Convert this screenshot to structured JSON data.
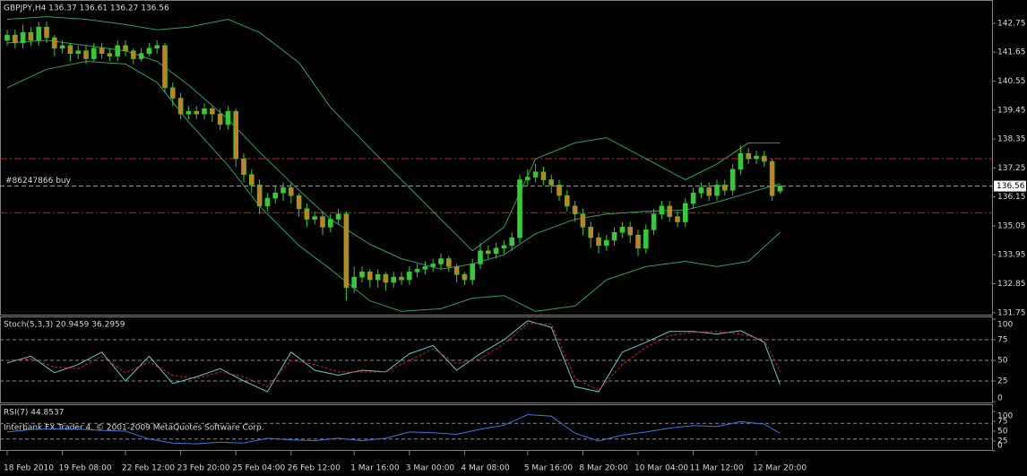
{
  "chart_data": [
    {
      "type": "candlestick",
      "title": "GBPJPY,H4  136.37 136.61 136.27 136.56",
      "open": [
        142.1,
        142.3,
        142.0,
        142.4,
        142.1,
        142.6,
        142.2,
        141.8,
        141.9,
        141.6,
        141.7,
        141.4,
        141.8,
        141.6,
        141.5,
        141.9,
        141.7,
        141.4,
        141.6,
        141.8,
        141.9,
        140.3,
        139.9,
        139.3,
        139.4,
        139.3,
        139.5,
        139.3,
        138.9,
        139.4,
        137.6,
        137.0,
        136.6,
        135.8,
        136.1,
        136.3,
        136.5,
        136.2,
        135.7,
        135.3,
        135.4,
        135.0,
        135.3,
        135.5,
        132.7,
        133.1,
        133.3,
        133.0,
        133.2,
        132.9,
        133.1,
        133.0,
        133.3,
        133.4,
        133.5,
        133.6,
        133.8,
        133.5,
        133.2,
        133.0,
        133.6,
        134.1,
        134.0,
        134.2,
        134.3,
        134.6,
        136.8,
        136.9,
        137.1,
        136.8,
        136.6,
        136.2,
        135.8,
        135.5,
        135.0,
        134.6,
        134.3,
        134.5,
        134.8,
        135.0,
        134.7,
        134.2,
        134.9,
        135.5,
        135.8,
        135.4,
        135.2,
        135.9,
        136.3,
        136.5,
        136.2,
        136.6,
        136.4,
        137.2,
        137.8,
        137.6,
        137.7,
        137.5,
        136.37
      ],
      "high": [
        142.5,
        142.5,
        142.7,
        142.6,
        142.8,
        142.8,
        142.3,
        142.1,
        142.0,
        141.9,
        141.9,
        142.0,
        142.0,
        141.8,
        142.1,
        142.1,
        141.8,
        141.8,
        142.0,
        142.1,
        142.0,
        140.5,
        140.1,
        139.6,
        139.6,
        139.7,
        139.6,
        139.5,
        139.6,
        139.5,
        137.8,
        137.2,
        136.8,
        136.3,
        136.6,
        136.7,
        136.7,
        136.3,
        135.9,
        135.6,
        135.6,
        135.5,
        135.7,
        135.6,
        133.5,
        133.5,
        133.4,
        133.4,
        133.3,
        133.3,
        133.3,
        133.5,
        133.6,
        133.7,
        133.8,
        134.0,
        133.9,
        133.6,
        133.3,
        133.8,
        134.4,
        134.3,
        134.4,
        134.5,
        134.8,
        137.0,
        137.2,
        137.4,
        137.3,
        137.0,
        136.8,
        136.4,
        136.0,
        135.7,
        135.2,
        134.8,
        134.7,
        135.0,
        135.2,
        135.2,
        134.9,
        135.1,
        135.7,
        136.0,
        136.0,
        135.6,
        136.1,
        136.5,
        136.7,
        136.7,
        136.8,
        136.8,
        137.4,
        138.1,
        138.0,
        137.9,
        137.9,
        137.6,
        136.61
      ],
      "low": [
        141.9,
        141.8,
        141.8,
        141.9,
        141.9,
        142.0,
        141.5,
        141.6,
        141.3,
        141.4,
        141.2,
        141.3,
        141.4,
        141.3,
        141.3,
        141.5,
        141.2,
        141.3,
        141.5,
        141.6,
        140.1,
        139.6,
        139.1,
        139.1,
        139.1,
        139.1,
        139.0,
        138.7,
        138.7,
        137.3,
        136.7,
        136.3,
        135.5,
        135.6,
        135.9,
        136.0,
        135.9,
        135.4,
        135.0,
        135.1,
        134.7,
        134.8,
        135.1,
        132.2,
        132.5,
        132.9,
        132.7,
        132.7,
        132.6,
        132.7,
        132.8,
        132.8,
        133.1,
        133.2,
        133.3,
        133.4,
        133.3,
        132.9,
        132.8,
        132.8,
        133.4,
        133.8,
        133.8,
        134.0,
        134.1,
        134.4,
        136.6,
        136.7,
        136.6,
        136.3,
        136.0,
        135.6,
        135.2,
        134.7,
        134.2,
        134.0,
        134.1,
        134.3,
        134.6,
        134.4,
        133.9,
        134.0,
        134.7,
        135.3,
        135.2,
        135.0,
        135.0,
        135.7,
        136.1,
        136.0,
        136.0,
        136.2,
        136.2,
        137.0,
        137.4,
        137.4,
        137.3,
        136.0,
        136.27
      ],
      "close": [
        142.3,
        142.0,
        142.4,
        142.1,
        142.6,
        142.2,
        141.8,
        141.9,
        141.6,
        141.7,
        141.4,
        141.8,
        141.6,
        141.5,
        141.9,
        141.7,
        141.4,
        141.6,
        141.8,
        141.9,
        140.3,
        139.9,
        139.3,
        139.4,
        139.3,
        139.5,
        139.3,
        138.9,
        139.4,
        137.6,
        137.0,
        136.6,
        135.8,
        136.1,
        136.3,
        136.5,
        136.2,
        135.7,
        135.3,
        135.4,
        135.0,
        135.3,
        135.5,
        132.7,
        133.1,
        133.3,
        133.0,
        133.2,
        132.9,
        133.1,
        133.0,
        133.3,
        133.4,
        133.5,
        133.6,
        133.8,
        133.5,
        133.2,
        133.0,
        133.6,
        134.1,
        134.0,
        134.2,
        134.3,
        134.6,
        136.8,
        136.9,
        137.1,
        136.8,
        136.6,
        136.2,
        135.8,
        135.5,
        135.0,
        134.6,
        134.3,
        134.5,
        134.8,
        135.0,
        134.7,
        134.2,
        134.9,
        135.5,
        135.8,
        135.4,
        135.2,
        135.9,
        136.3,
        136.5,
        136.2,
        136.6,
        136.4,
        137.2,
        137.8,
        137.6,
        137.7,
        137.5,
        136.2,
        136.56
      ],
      "bull_color": "#33cc33",
      "bear_color": "#c8801e",
      "wick_color": "#33cc33",
      "bands": {
        "color": "#2e9e5a",
        "x": [
          0,
          5,
          10,
          15,
          19,
          23,
          28,
          32,
          37,
          41,
          46,
          50,
          55,
          59,
          63,
          67,
          72,
          76,
          81,
          86,
          90,
          94,
          98
        ],
        "upper": [
          142.9,
          143.0,
          142.9,
          142.7,
          142.5,
          142.6,
          142.9,
          142.4,
          141.25,
          139.55,
          138.0,
          136.8,
          135.3,
          134.1,
          135.0,
          137.6,
          138.2,
          138.4,
          137.6,
          136.8,
          137.4,
          138.2,
          138.2
        ],
        "middle": [
          142.0,
          142.1,
          141.9,
          141.7,
          141.3,
          140.4,
          139.1,
          137.85,
          136.4,
          135.3,
          134.35,
          133.8,
          133.4,
          133.6,
          133.95,
          134.75,
          135.3,
          135.5,
          135.6,
          135.65,
          135.95,
          136.3,
          136.65
        ],
        "lower": [
          140.3,
          141.0,
          141.3,
          141.2,
          140.5,
          139.0,
          137.35,
          135.8,
          134.3,
          133.4,
          132.2,
          131.8,
          131.9,
          132.3,
          132.4,
          131.8,
          132.0,
          133.0,
          133.5,
          133.7,
          133.5,
          133.7,
          134.8
        ]
      },
      "hlines": [
        {
          "value": 137.6,
          "color": "#cc2020"
        },
        {
          "value": 135.55,
          "color": "#cc2020"
        }
      ],
      "order_line": {
        "value": 136.56,
        "label": "#86247866 buy",
        "color": "#9aa89a"
      },
      "last_price": 136.56,
      "xlim": [
        -0.91,
        125
      ],
      "ylim": [
        131.64,
        143.53
      ],
      "yticks": [
        142.75,
        141.65,
        140.55,
        139.45,
        138.35,
        137.25,
        136.15,
        135.05,
        133.95,
        132.85,
        131.75
      ],
      "xticks": [
        {
          "value": 0,
          "label": "18 Feb 2010"
        },
        {
          "value": 7,
          "label": "19 Feb 08:00"
        },
        {
          "value": 15,
          "label": "22 Feb 12:00"
        },
        {
          "value": 22,
          "label": "23 Feb 20:00"
        },
        {
          "value": 29,
          "label": "25 Feb 04:00"
        },
        {
          "value": 36,
          "label": "26 Feb 12:00"
        },
        {
          "value": 44,
          "label": "1 Mar 16:00"
        },
        {
          "value": 51,
          "label": "3 Mar 00:00"
        },
        {
          "value": 58,
          "label": "4 Mar 08:00"
        },
        {
          "value": 66,
          "label": "5 Mar 16:00"
        },
        {
          "value": 73,
          "label": "8 Mar 20:00"
        },
        {
          "value": 80,
          "label": "10 Mar 04:00"
        },
        {
          "value": 87,
          "label": "11 Mar 12:00"
        },
        {
          "value": 95,
          "label": "12 Mar 20:00"
        }
      ]
    },
    {
      "type": "line",
      "title": "Stoch(5,3,3) 20.9459 36.2959",
      "x": [
        0,
        3,
        6,
        9,
        12,
        15,
        18,
        21,
        24,
        27,
        30,
        33,
        36,
        39,
        42,
        45,
        48,
        51,
        54,
        57,
        60,
        63,
        66,
        69,
        72,
        75,
        78,
        81,
        84,
        87,
        90,
        93,
        96,
        98
      ],
      "series": [
        {
          "color": "#5fc8c8",
          "dash": false,
          "values": [
            47,
            55,
            35,
            45,
            60,
            25,
            55,
            22,
            30,
            40,
            25,
            12,
            60,
            38,
            32,
            38,
            36,
            58,
            68,
            38,
            58,
            75,
            98,
            90,
            18,
            12,
            60,
            72,
            85,
            85,
            82,
            86,
            72,
            20.9459
          ]
        },
        {
          "color": "#d02020",
          "dash": true,
          "values": [
            50,
            52,
            42,
            40,
            55,
            35,
            48,
            32,
            28,
            36,
            30,
            18,
            50,
            45,
            36,
            36,
            36,
            50,
            64,
            46,
            52,
            70,
            95,
            94,
            28,
            14,
            45,
            66,
            80,
            84,
            85,
            82,
            75,
            36.2959
          ]
        }
      ],
      "levels": [
        75,
        50,
        25
      ],
      "xlim": [
        -0.91,
        125
      ],
      "ylim": [
        0,
        100
      ],
      "yticks": [
        100,
        75,
        50,
        25,
        0
      ]
    },
    {
      "type": "line",
      "title": "RSI(7) 44.8537",
      "x": [
        0,
        3,
        6,
        9,
        12,
        15,
        18,
        21,
        24,
        27,
        30,
        33,
        36,
        39,
        42,
        45,
        48,
        51,
        54,
        57,
        60,
        63,
        66,
        69,
        72,
        75,
        78,
        81,
        84,
        87,
        90,
        93,
        96,
        98
      ],
      "series": [
        {
          "color": "#3a78e0",
          "dash": false,
          "values": [
            48,
            54,
            56,
            55,
            52,
            50,
            30,
            20,
            18,
            22,
            20,
            32,
            28,
            26,
            32,
            26,
            32,
            48,
            46,
            42,
            55,
            65,
            92,
            88,
            45,
            25,
            40,
            48,
            58,
            64,
            62,
            74,
            68,
            44.8537
          ]
        }
      ],
      "levels": [
        70,
        30
      ],
      "xlim": [
        -0.91,
        125
      ],
      "ylim": [
        0,
        100
      ],
      "yticks": [
        100,
        75,
        50,
        25,
        0
      ]
    }
  ],
  "footer": "Interbank FX Trader 4, © 2001-2009 MetaQuotes Software Corp."
}
